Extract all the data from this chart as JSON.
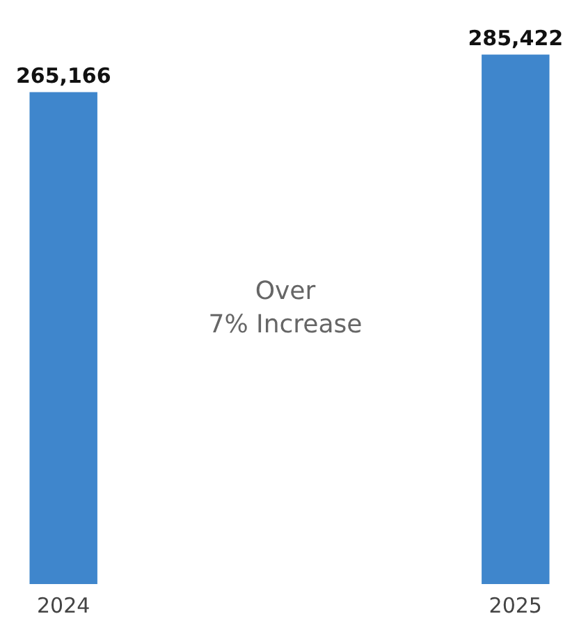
{
  "chart_data": {
    "type": "bar",
    "categories": [
      "2024",
      "2025"
    ],
    "values": [
      265166,
      285422
    ],
    "color": "#3f86cc",
    "value_labels": [
      "265,166",
      "285,422"
    ],
    "annotations": [
      "Over\n7% Increase"
    ]
  }
}
